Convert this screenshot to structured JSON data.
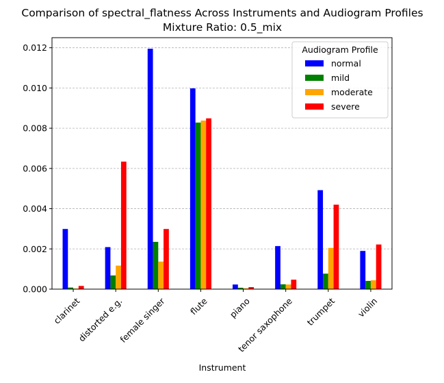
{
  "chart_data": {
    "type": "bar",
    "title": "Comparison of spectral_flatness Across Instruments and Audiogram Profiles",
    "subtitle": "Mixture Ratio: 0.5_mix",
    "xlabel": "Instrument",
    "ylabel": "",
    "categories": [
      "clarinet",
      "distorted e.g.",
      "female singer",
      "flute",
      "piano",
      "tenor saxophone",
      "trumpet",
      "violin"
    ],
    "series": [
      {
        "name": "normal",
        "color": "#0000ff",
        "values": [
          0.00299,
          0.00209,
          0.01195,
          0.00998,
          0.00023,
          0.00214,
          0.00492,
          0.0019
        ]
      },
      {
        "name": "mild",
        "color": "#008000",
        "values": [
          8e-05,
          0.00068,
          0.00235,
          0.00828,
          7e-05,
          0.00024,
          0.00077,
          0.00041
        ]
      },
      {
        "name": "moderate",
        "color": "#ffa500",
        "values": [
          3e-05,
          0.00117,
          0.00137,
          0.00838,
          4e-05,
          0.00023,
          0.00205,
          0.00044
        ]
      },
      {
        "name": "severe",
        "color": "#ff0000",
        "values": [
          0.00016,
          0.00634,
          0.00299,
          0.00849,
          0.0001,
          0.00047,
          0.0042,
          0.00222
        ]
      }
    ],
    "ylim": [
      0,
      0.0125
    ],
    "yticks": [
      "0.000",
      "0.002",
      "0.004",
      "0.006",
      "0.008",
      "0.010",
      "0.012"
    ],
    "ytick_values": [
      0,
      0.002,
      0.004,
      0.006,
      0.008,
      0.01,
      0.012
    ],
    "grid": "y-dashed",
    "legend": {
      "title": "Audiogram Profile",
      "placement": "top-right"
    }
  }
}
